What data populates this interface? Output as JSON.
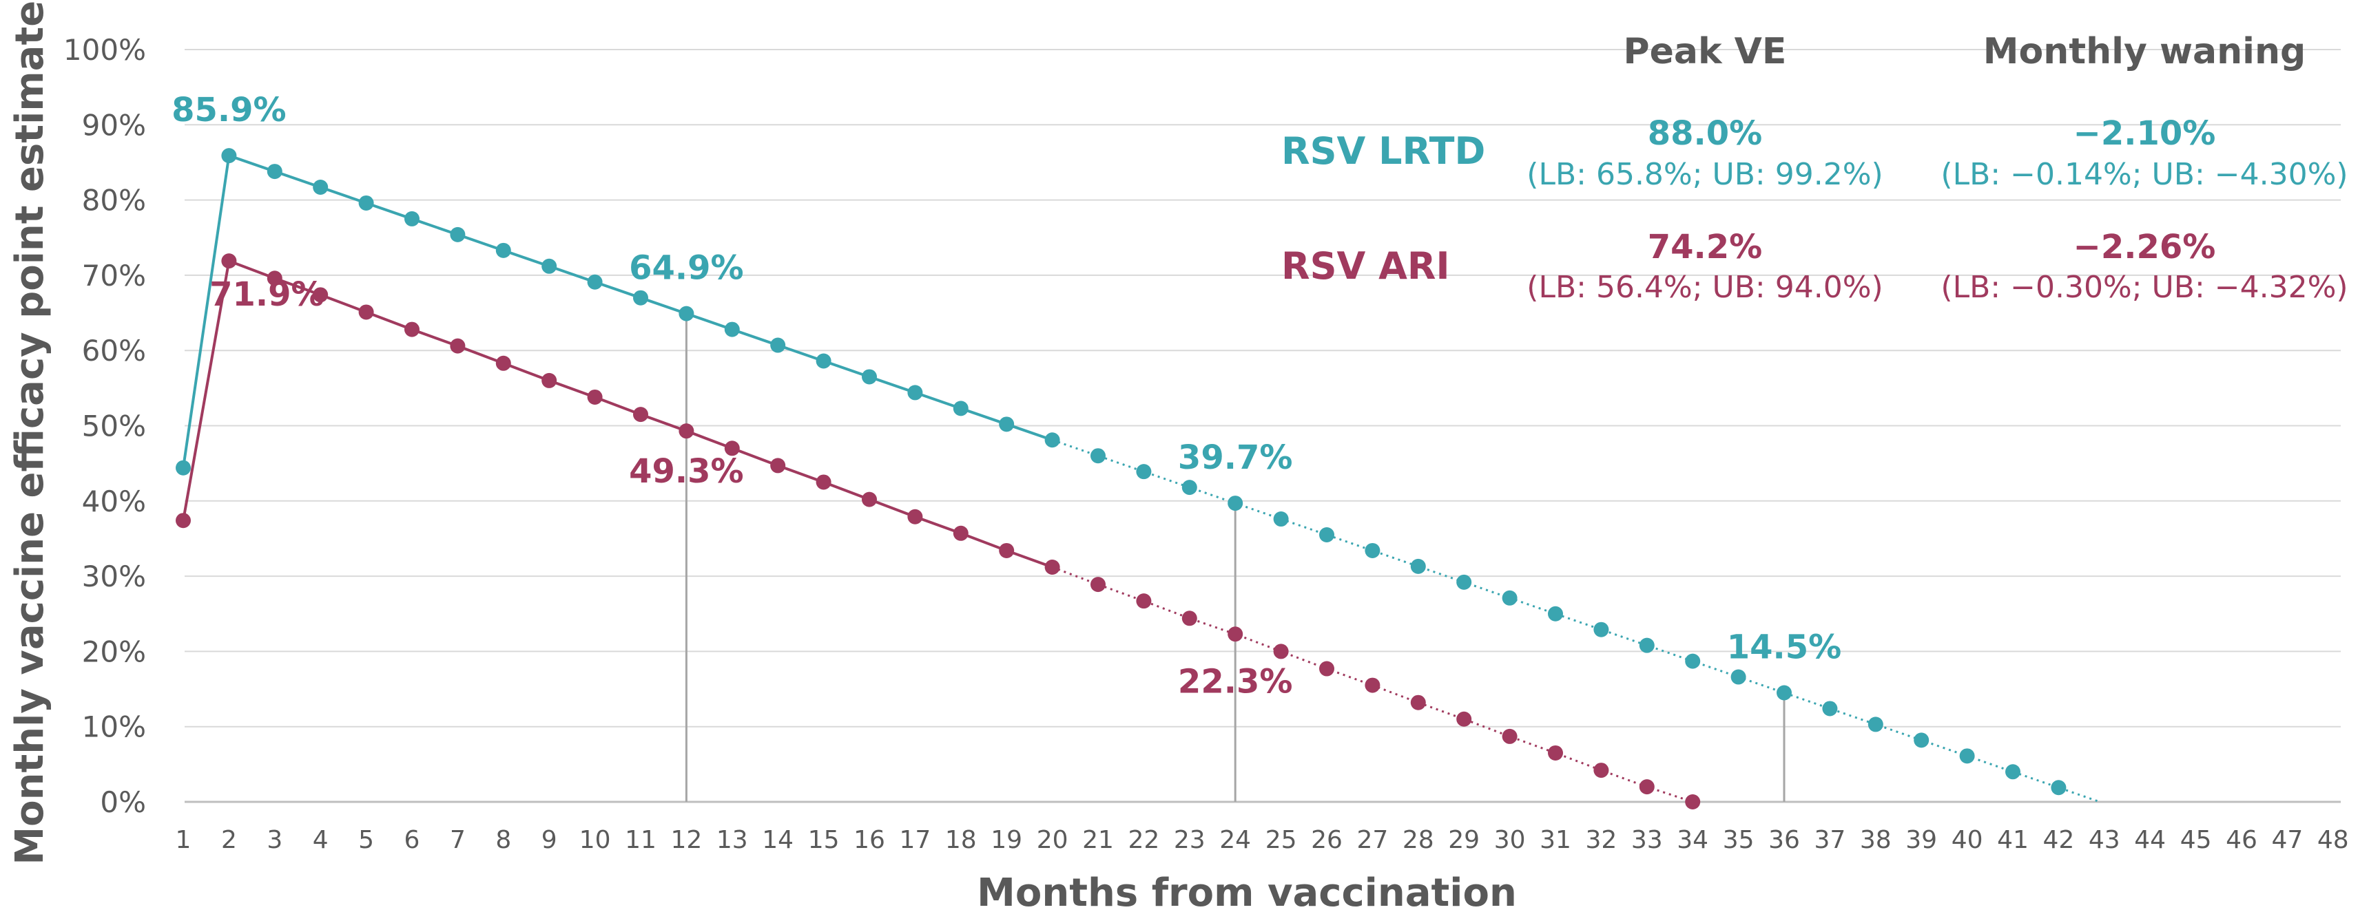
{
  "colors": {
    "lrtd": "#3aa5b0",
    "ari": "#a03a5e",
    "text": "#595959",
    "grid": "#d9d9d9"
  },
  "chart_data": {
    "type": "line",
    "title": "",
    "xlabel": "Months from vaccination",
    "ylabel": "Monthly vaccine efficacy point estimates",
    "x": [
      1,
      2,
      3,
      4,
      5,
      6,
      7,
      8,
      9,
      10,
      11,
      12,
      13,
      14,
      15,
      16,
      17,
      18,
      19,
      20,
      21,
      22,
      23,
      24,
      25,
      26,
      27,
      28,
      29,
      30,
      31,
      32,
      33,
      34,
      35,
      36,
      37,
      38,
      39,
      40,
      41,
      42,
      43,
      44,
      45,
      46,
      47,
      48
    ],
    "ylim": [
      0,
      100
    ],
    "yticks": [
      0,
      10,
      20,
      30,
      40,
      50,
      60,
      70,
      80,
      90,
      100
    ],
    "ytick_labels": [
      "0%",
      "10%",
      "20%",
      "30%",
      "40%",
      "50%",
      "60%",
      "70%",
      "80%",
      "90%",
      "100%"
    ],
    "grid": true,
    "observed_through_month": 20,
    "series": [
      {
        "name": "RSV LRTD",
        "color": "#3aa5b0",
        "x": [
          1,
          2,
          3,
          4,
          5,
          6,
          7,
          8,
          9,
          10,
          11,
          12,
          13,
          14,
          15,
          16,
          17,
          18,
          19,
          20,
          21,
          22,
          23,
          24,
          25,
          26,
          27,
          28,
          29,
          30,
          31,
          32,
          33,
          34,
          35,
          36,
          37,
          38,
          39,
          40,
          41,
          42
        ],
        "values": [
          44.4,
          85.9,
          83.8,
          81.7,
          79.6,
          77.5,
          75.4,
          73.3,
          71.2,
          69.1,
          67.0,
          64.9,
          62.8,
          60.7,
          58.6,
          56.5,
          54.4,
          52.3,
          50.2,
          48.1,
          46.0,
          43.9,
          41.8,
          39.7,
          37.6,
          35.5,
          33.4,
          31.3,
          29.2,
          27.1,
          25.0,
          22.9,
          20.8,
          18.7,
          16.6,
          14.5,
          12.4,
          10.3,
          8.2,
          6.1,
          4.0,
          1.9
        ],
        "trend_end": {
          "x": 42.9,
          "y": 0
        },
        "peak_ve": "88.0%",
        "peak_ci": "(LB: 65.8%; UB: 99.2%)",
        "monthly_waning": "−2.10%",
        "waning_ci": "(LB: −0.14%; UB: −4.30%)"
      },
      {
        "name": "RSV ARI",
        "color": "#a03a5e",
        "x": [
          1,
          2,
          3,
          4,
          5,
          6,
          7,
          8,
          9,
          10,
          11,
          12,
          13,
          14,
          15,
          16,
          17,
          18,
          19,
          20,
          21,
          22,
          23,
          24,
          25,
          26,
          27,
          28,
          29,
          30,
          31,
          32,
          33,
          34
        ],
        "values": [
          37.4,
          71.9,
          69.6,
          67.4,
          65.1,
          62.8,
          60.6,
          58.3,
          56.0,
          53.8,
          51.5,
          49.3,
          47.0,
          44.7,
          42.5,
          40.2,
          37.9,
          35.7,
          33.4,
          31.2,
          28.9,
          26.7,
          24.4,
          22.3,
          20.0,
          17.7,
          15.5,
          13.2,
          11.0,
          8.7,
          6.5,
          4.2,
          2.0,
          0.0
        ],
        "trend_end": null,
        "peak_ve": "74.2%",
        "peak_ci": "(LB: 56.4%; UB: 94.0%)",
        "monthly_waning": "−2.26%",
        "waning_ci": "(LB: −0.30%; UB: −4.32%)"
      }
    ],
    "annotations": [
      {
        "text": "85.9%",
        "series": 0,
        "x": 2,
        "y": 85.9
      },
      {
        "text": "64.9%",
        "series": 0,
        "x": 12,
        "y": 64.9
      },
      {
        "text": "39.7%",
        "series": 0,
        "x": 24,
        "y": 39.7
      },
      {
        "text": "14.5%",
        "series": 0,
        "x": 36,
        "y": 14.5
      },
      {
        "text": "71.9%",
        "series": 1,
        "x": 2,
        "y": 71.9
      },
      {
        "text": "49.3%",
        "series": 1,
        "x": 12,
        "y": 49.3
      },
      {
        "text": "22.3%",
        "series": 1,
        "x": 24,
        "y": 22.3
      }
    ],
    "droplines_x": [
      12,
      24,
      36
    ],
    "table_headers": {
      "peak": "Peak VE",
      "waning": "Monthly waning"
    }
  }
}
